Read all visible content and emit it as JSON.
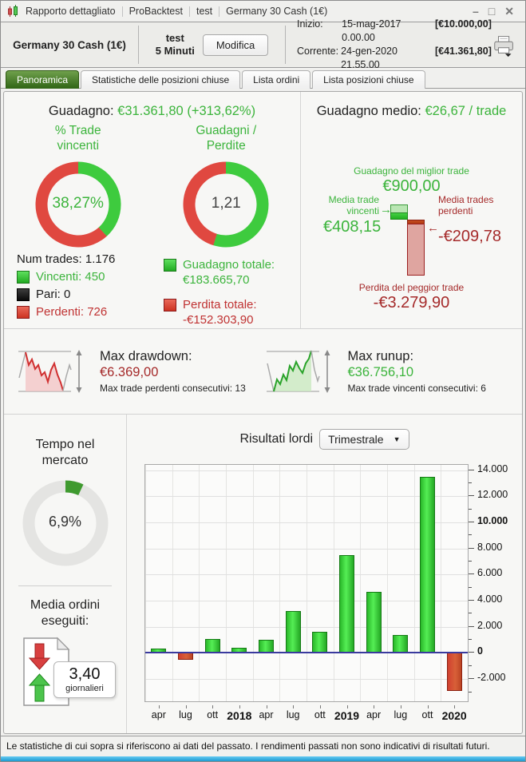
{
  "titlebar": {
    "segments": [
      "Rapporto dettagliato",
      "ProBacktest",
      "test",
      "Germany 30 Cash (1€)"
    ],
    "minimize": "–",
    "maximize": "□",
    "close": "✕"
  },
  "header": {
    "instrument": "Germany 30 Cash (1€)",
    "strategy": "test",
    "timeframe": "5 Minuti",
    "modify_label": "Modifica",
    "inizio_label": "Inizio:",
    "inizio_date": "15-mag-2017 0.00.00",
    "inizio_amount": "[€10.000,00]",
    "corrente_label": "Corrente:",
    "corrente_date": "24-gen-2020 21.55.00",
    "corrente_amount": "[€41.361,80]"
  },
  "tabs": [
    {
      "label": "Panoramica",
      "active": true
    },
    {
      "label": "Statistiche delle posizioni chiuse",
      "active": false
    },
    {
      "label": "Lista ordini",
      "active": false
    },
    {
      "label": "Lista posizioni chiuse",
      "active": false
    }
  ],
  "overview": {
    "gain_label": "Guadagno:",
    "gain_value": "€31.361,80 (+313,62%)",
    "win_donut": {
      "title_line1": "% Trade",
      "title_line2": "vincenti",
      "center": "38,27%",
      "green_pct": 38.27
    },
    "ratio_donut": {
      "title_line1": "Guadagni /",
      "title_line2": "Perdite",
      "center": "1,21",
      "green_pct": 54.66
    },
    "num_trades": "Num trades: 1.176",
    "legend_win": "Vincenti: 450",
    "legend_even": "Pari: 0",
    "legend_loss": "Perdenti: 726",
    "total_gain_label": "Guadagno totale:",
    "total_gain_value": "€183.665,70",
    "total_loss_label": "Perdita totale:",
    "total_loss_value": "-€152.303,90",
    "avg_label": "Guadagno medio:",
    "avg_value": "€26,67 / trade",
    "best": {
      "label": "Guadagno del miglior trade",
      "value": "€900,00",
      "amount": 900
    },
    "avg_win": {
      "label_line1": "Media trade",
      "label_line2": "vincenti",
      "arrow": "→",
      "value": "€408,15",
      "amount": 408.15
    },
    "avg_loss": {
      "label_line1": "Media trades",
      "label_line2": "perdenti",
      "arrow": "←",
      "value": "-€209,78",
      "amount": -209.78
    },
    "worst": {
      "label": "Perdita del peggior trade",
      "value": "-€3.279,90",
      "amount": -3279.9
    }
  },
  "risk": {
    "drawdown": {
      "title": "Max drawdown:",
      "value": "€6.369,00",
      "sub": "Max trade perdenti consecutivi: 13"
    },
    "runup": {
      "title": "Max runup:",
      "value": "€36.756,10",
      "sub": "Max trade vincenti consecutivi: 6"
    }
  },
  "left_col": {
    "tempo_title_line1": "Tempo nel",
    "tempo_title_line2": "mercato",
    "tempo_donut": {
      "center": "6,9%",
      "green_pct": 6.9
    },
    "media_title_line1": "Media ordini",
    "media_title_line2": "eseguiti:",
    "media_value": "3,40",
    "media_unit": "giornalieri"
  },
  "chart_data": {
    "type": "bar",
    "title": "Risultati lordi",
    "period_selector": "Trimestrale",
    "categories": [
      "apr",
      "lug",
      "ott",
      "2018",
      "apr",
      "lug",
      "ott",
      "2019",
      "apr",
      "lug",
      "ott",
      "2020"
    ],
    "values": [
      350,
      -500,
      1100,
      400,
      1000,
      3200,
      1600,
      7500,
      4700,
      1400,
      13500,
      -2900
    ],
    "ylim": [
      -3700,
      14400
    ],
    "yticks": [
      {
        "v": 14000,
        "label": "14.000",
        "bold": false
      },
      {
        "v": 12000,
        "label": "12.000",
        "bold": false
      },
      {
        "v": 10000,
        "label": "10.000",
        "bold": true
      },
      {
        "v": 8000,
        "label": "8.000",
        "bold": false
      },
      {
        "v": 6000,
        "label": "6.000",
        "bold": false
      },
      {
        "v": 4000,
        "label": "4.000",
        "bold": false
      },
      {
        "v": 2000,
        "label": "2.000",
        "bold": false
      },
      {
        "v": 0,
        "label": "0",
        "bold": true
      },
      {
        "v": -2000,
        "label": "-2.000",
        "bold": false
      }
    ],
    "minor_ticks": [
      13000,
      11000,
      9000,
      7000,
      5000,
      3000,
      1000,
      -1000,
      -3000
    ],
    "positive_color": "#33cc33",
    "negative_color": "#d04030",
    "zero_line_color": "#3a3a9e",
    "grid": true
  },
  "colors": {
    "green": "#3cb43c",
    "red": "#c03333",
    "donut_green": "#3ecb3e",
    "donut_red": "#e04840",
    "tempo_gray": "#e4e4e2",
    "tempo_green": "#3f9a2f",
    "active_tab_green": "#2f6414"
  },
  "footer": "Le statistiche di cui sopra si riferiscono ai dati del passato. I rendimenti passati non sono indicativi di risultati futuri."
}
